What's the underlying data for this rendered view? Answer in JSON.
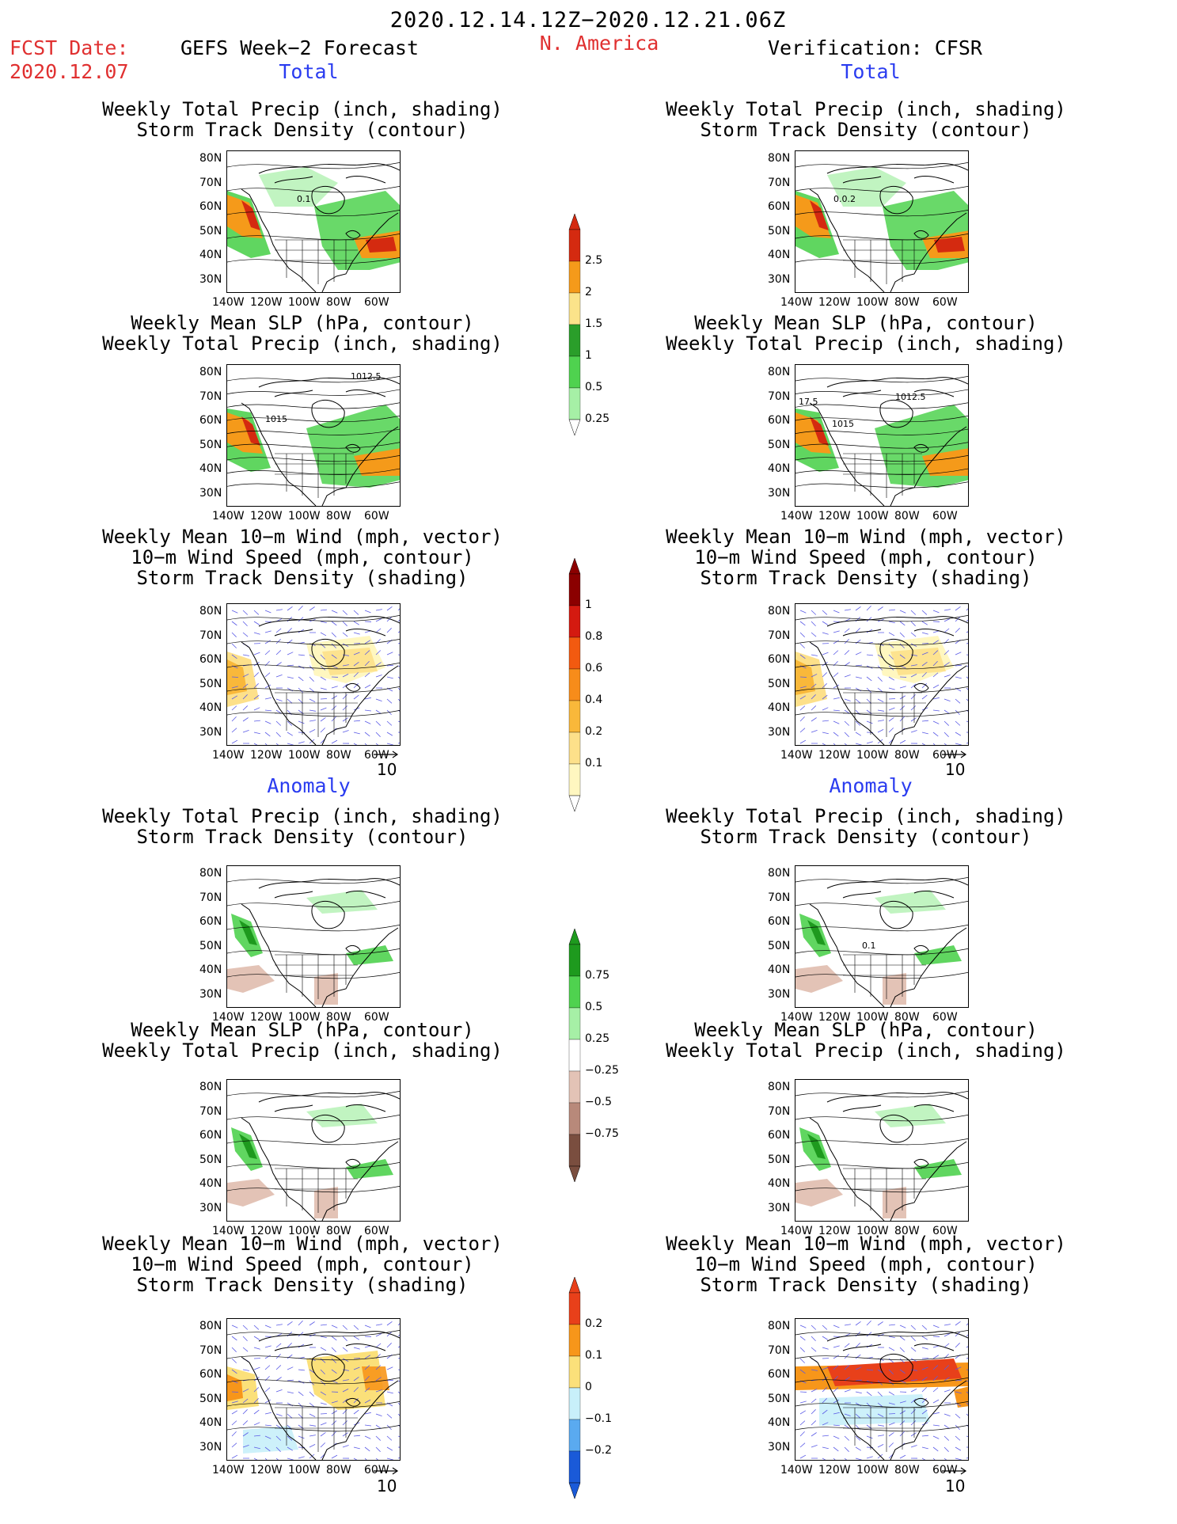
{
  "header": {
    "date_range": "2020.12.14.12Z−2020.12.21.06Z",
    "fcst_label": "FCST Date:",
    "fcst_date": "2020.12.07",
    "left_title": "GEFS Week−2 Forecast",
    "region": "N. America",
    "right_title": "Verification: CFSR"
  },
  "sections": {
    "total": "Total",
    "anomaly": "Anomaly"
  },
  "panel_titles": {
    "precip_track": [
      "Weekly Total Precip (inch, shading)",
      "Storm Track Density (contour)"
    ],
    "slp_precip": [
      "Weekly Mean SLP (hPa, contour)",
      "Weekly Total Precip (inch, shading)"
    ],
    "wind_track": [
      "Weekly Mean 10−m Wind (mph, vector)",
      "10−m Wind Speed (mph, contour)",
      "Storm Track Density (shading)"
    ]
  },
  "axes": {
    "lat_ticks": [
      "80N",
      "70N",
      "60N",
      "50N",
      "40N",
      "30N"
    ],
    "lon_ticks": [
      "140W",
      "120W",
      "100W",
      "80W",
      "60W"
    ]
  },
  "vector_ref": "10",
  "map_annotations": {
    "fc_total_precip": "0.1",
    "obs_total_precip": "0.0.2",
    "fc_total_slp": [
      "1012.5",
      "1015"
    ],
    "obs_total_slp": [
      "1012.5",
      "17.5",
      "1015"
    ],
    "obs_anom_precip": "0.1"
  },
  "colorbars": {
    "precip_total": {
      "labels": [
        "2.5",
        "2",
        "1.5",
        "1",
        "0.5",
        "0.25"
      ],
      "colors": [
        "#d42a10",
        "#f59a1a",
        "#fbe38a",
        "#2a9e2a",
        "#4fd24f",
        "#a6f0a6"
      ]
    },
    "track_total": {
      "labels": [
        "1",
        "0.8",
        "0.6",
        "0.4",
        "0.2",
        "0.1"
      ],
      "colors": [
        "#8b0000",
        "#d41a10",
        "#f25a10",
        "#f78c1a",
        "#f9b83a",
        "#fde08a",
        "#fff7c0"
      ]
    },
    "precip_anom": {
      "labels": [
        "0.75",
        "0.5",
        "0.25",
        "−0.25",
        "−0.5",
        "−0.75"
      ],
      "colors": [
        "#1e9a1e",
        "#4fd24f",
        "#a6f0a6",
        "#ffffff",
        "#e3c3b6",
        "#b8897a",
        "#7a4e3f"
      ]
    },
    "track_anom": {
      "labels": [
        "0.2",
        "0.1",
        "0",
        "−0.1",
        "−0.2"
      ],
      "colors": [
        "#e8401a",
        "#f7961a",
        "#fbe07a",
        "#c8f0fa",
        "#5aaaf0",
        "#1a5ad8"
      ]
    }
  }
}
